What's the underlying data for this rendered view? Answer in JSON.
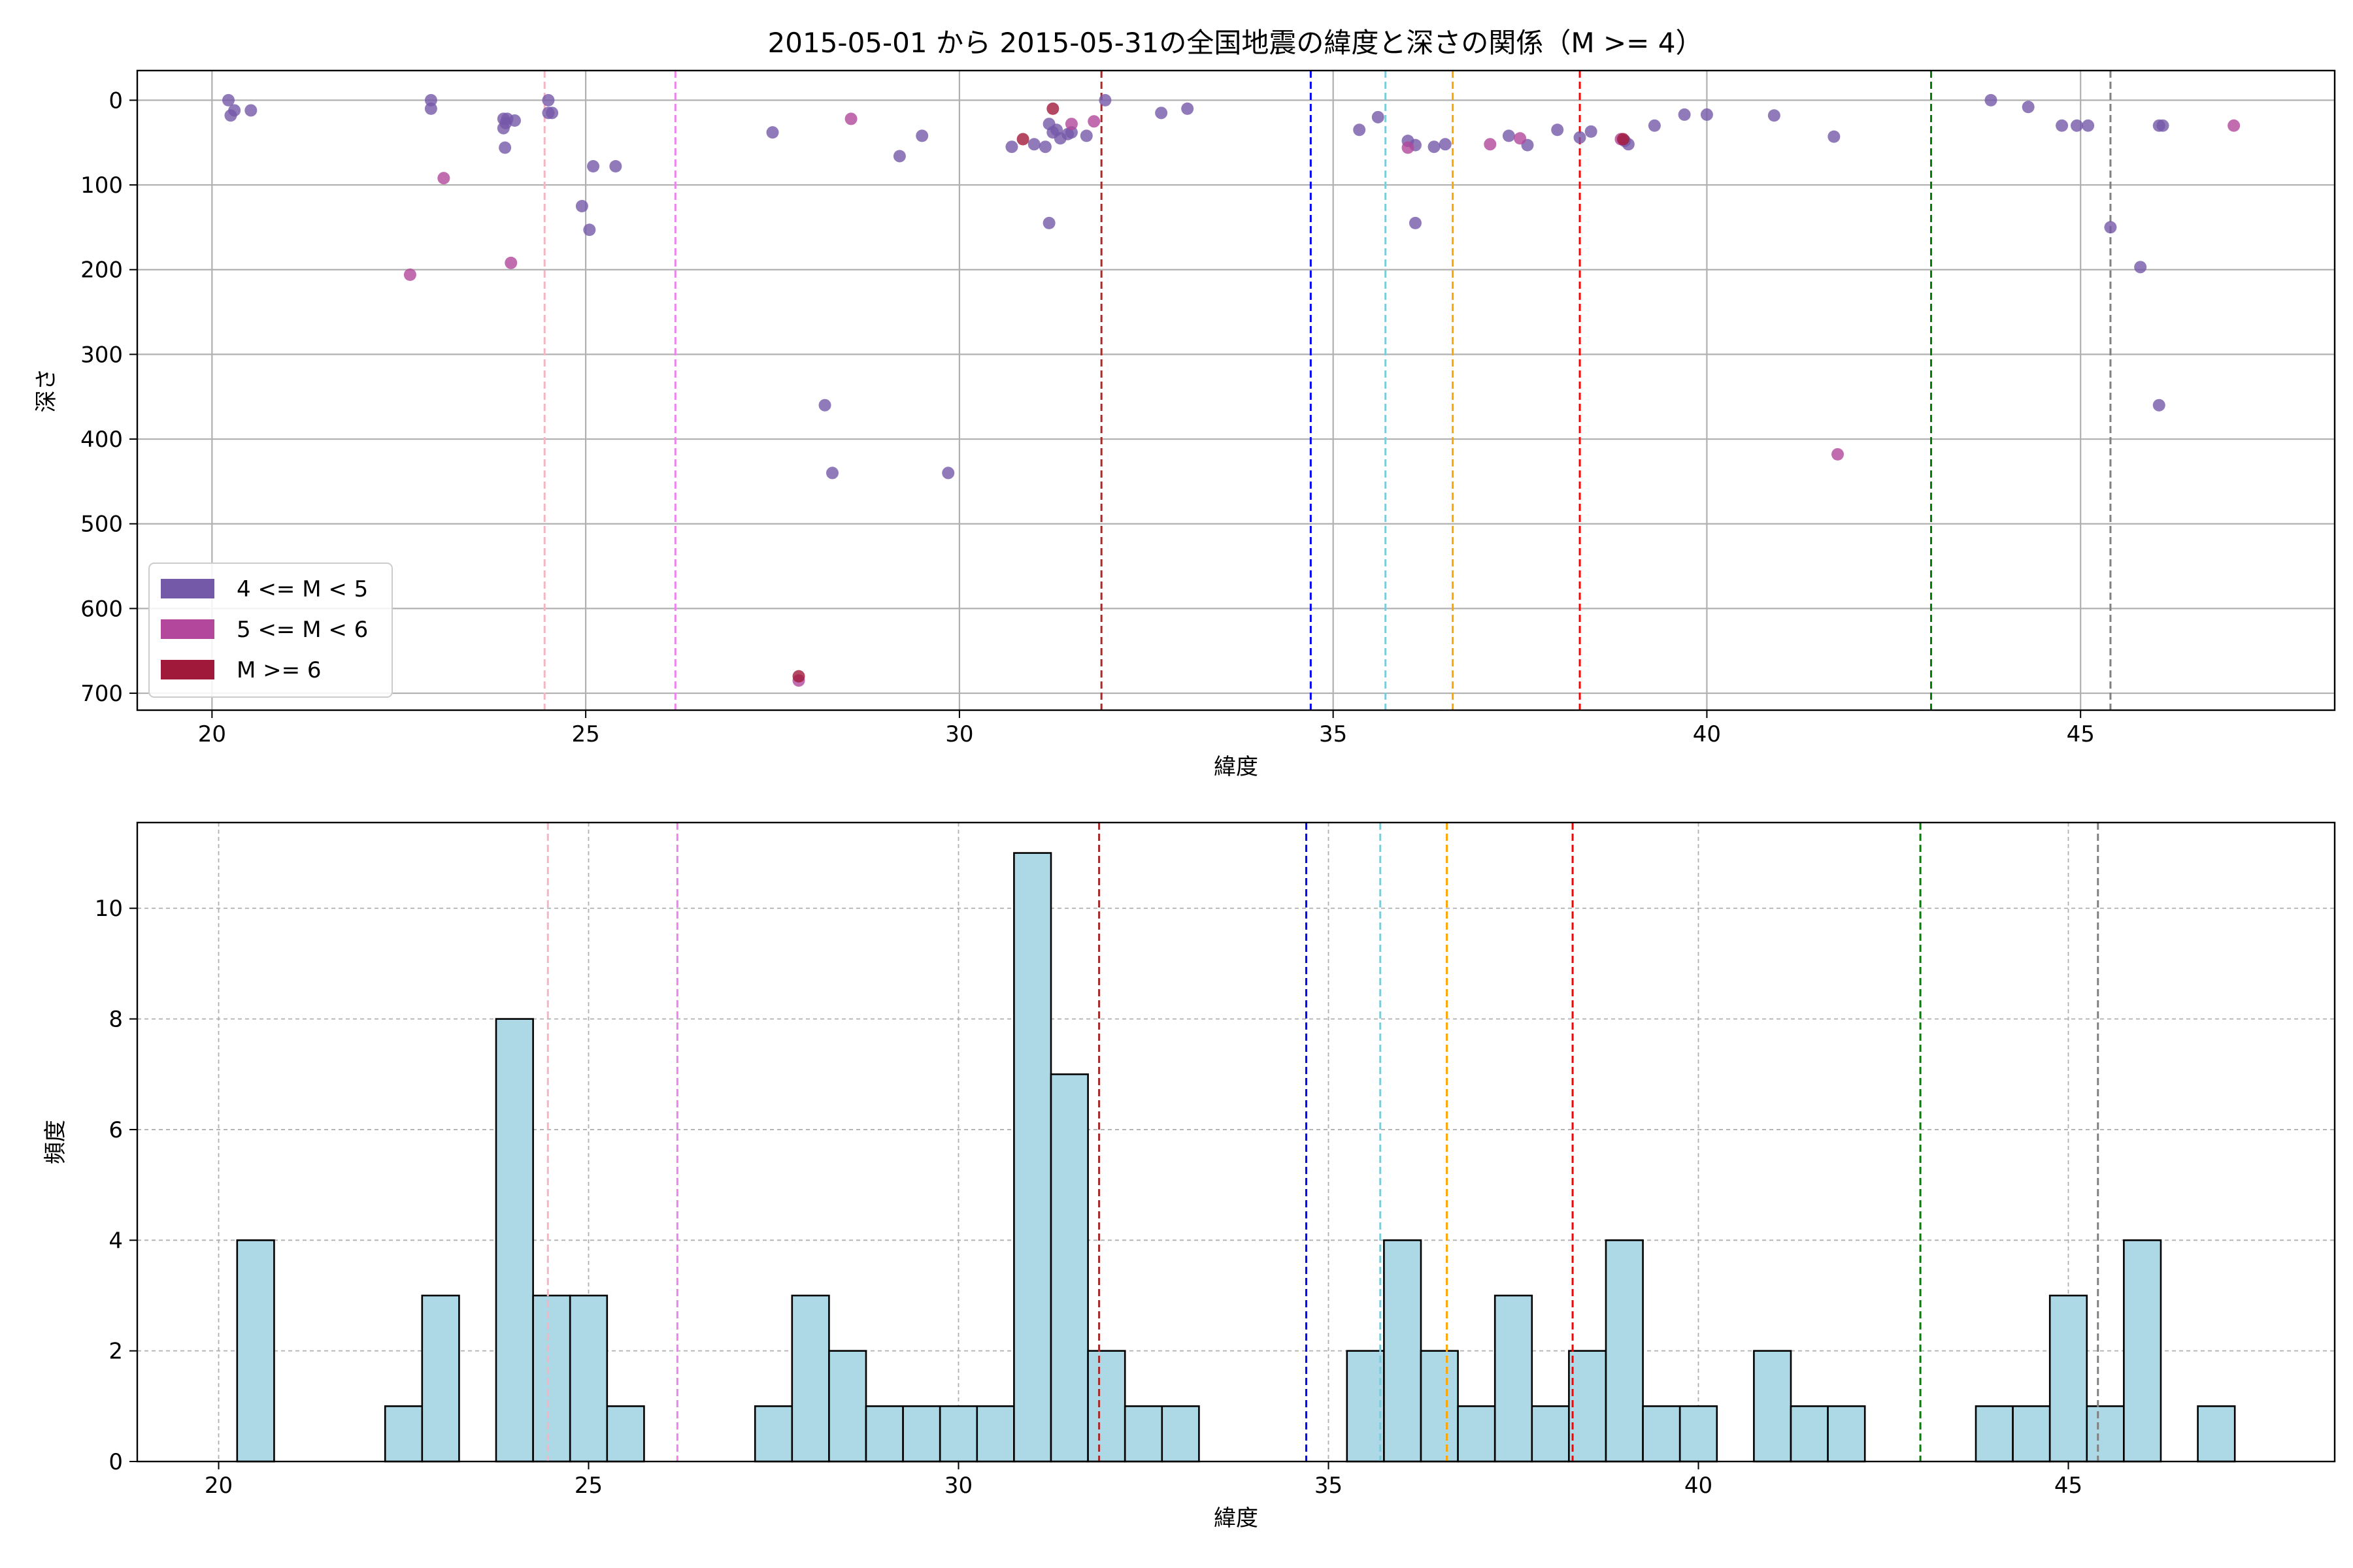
{
  "chart_data": [
    {
      "type": "scatter",
      "title": "2015-05-01 から 2015-05-31の全国地震の緯度と深さの関係（M >= 4）",
      "xlabel": "緯度",
      "ylabel": "深さ",
      "xlim": [
        19,
        48.4
      ],
      "ylim": [
        720,
        -35
      ],
      "y_inverted": true,
      "grid": true,
      "x_ticks": [
        20,
        25,
        30,
        35,
        40,
        45
      ],
      "y_ticks": [
        0,
        100,
        200,
        300,
        400,
        500,
        600,
        700
      ],
      "legend": {
        "placement": "lower-left",
        "entries": [
          {
            "label": "4 <= M < 5",
            "color": "#7559a9"
          },
          {
            "label": "5 <= M < 6",
            "color": "#b2479b"
          },
          {
            "label": "M >= 6",
            "color": "#a1193a"
          }
        ]
      },
      "series": [
        {
          "class": "4 <= M < 5",
          "color": "#7559a9",
          "points": [
            [
              20.22,
              0
            ],
            [
              20.25,
              18
            ],
            [
              20.3,
              12
            ],
            [
              20.52,
              12
            ],
            [
              22.93,
              0
            ],
            [
              22.93,
              10
            ],
            [
              23.9,
              22
            ],
            [
              23.93,
              27
            ],
            [
              23.9,
              33
            ],
            [
              23.95,
              22
            ],
            [
              24.05,
              24
            ],
            [
              23.92,
              56
            ],
            [
              24.5,
              0
            ],
            [
              24.55,
              15
            ],
            [
              24.5,
              15
            ],
            [
              24.95,
              125
            ],
            [
              25.05,
              153
            ],
            [
              25.1,
              78
            ],
            [
              25.4,
              78
            ],
            [
              27.5,
              38
            ],
            [
              28.2,
              360
            ],
            [
              28.3,
              440
            ],
            [
              29.2,
              66
            ],
            [
              29.5,
              42
            ],
            [
              29.85,
              440
            ],
            [
              30.7,
              55
            ],
            [
              31.0,
              52
            ],
            [
              31.15,
              55
            ],
            [
              31.2,
              28
            ],
            [
              31.25,
              38
            ],
            [
              31.3,
              35
            ],
            [
              31.2,
              145
            ],
            [
              31.35,
              45
            ],
            [
              31.45,
              40
            ],
            [
              31.5,
              38
            ],
            [
              31.7,
              42
            ],
            [
              31.95,
              0
            ],
            [
              32.7,
              15
            ],
            [
              33.05,
              10
            ],
            [
              35.35,
              35
            ],
            [
              35.6,
              20
            ],
            [
              36.0,
              48
            ],
            [
              36.1,
              145
            ],
            [
              36.1,
              53
            ],
            [
              36.35,
              55
            ],
            [
              36.5,
              52
            ],
            [
              37.35,
              42
            ],
            [
              37.6,
              53
            ],
            [
              38.0,
              35
            ],
            [
              38.3,
              44
            ],
            [
              38.45,
              37
            ],
            [
              38.9,
              48
            ],
            [
              38.95,
              52
            ],
            [
              39.3,
              30
            ],
            [
              39.7,
              17
            ],
            [
              40.0,
              17
            ],
            [
              40.9,
              18
            ],
            [
              41.7,
              43
            ],
            [
              43.8,
              0
            ],
            [
              44.3,
              8
            ],
            [
              44.75,
              30
            ],
            [
              44.95,
              30
            ],
            [
              45.1,
              30
            ],
            [
              45.4,
              150
            ],
            [
              45.8,
              197
            ],
            [
              46.05,
              30
            ],
            [
              46.1,
              30
            ],
            [
              46.05,
              360
            ]
          ]
        },
        {
          "class": "5 <= M < 6",
          "color": "#b2479b",
          "points": [
            [
              22.65,
              206
            ],
            [
              23.1,
              92
            ],
            [
              24.0,
              192
            ],
            [
              27.85,
              685
            ],
            [
              28.55,
              22
            ],
            [
              31.5,
              28
            ],
            [
              31.8,
              25
            ],
            [
              36.0,
              56
            ],
            [
              37.1,
              52
            ],
            [
              37.5,
              45
            ],
            [
              38.85,
              46
            ],
            [
              41.75,
              418
            ],
            [
              47.05,
              30
            ]
          ]
        },
        {
          "class": "M >= 6",
          "color": "#a1193a",
          "points": [
            [
              27.85,
              680
            ],
            [
              30.85,
              46
            ],
            [
              31.25,
              10
            ],
            [
              38.88,
              46
            ]
          ]
        }
      ],
      "vertical_lines": [
        {
          "x": 24.45,
          "color": "#f4b6c2"
        },
        {
          "x": 26.2,
          "color": "#ee82ee"
        },
        {
          "x": 31.9,
          "color": "#a52a2a"
        },
        {
          "x": 34.7,
          "color": "#0000ff"
        },
        {
          "x": 35.7,
          "color": "#7ecbdb"
        },
        {
          "x": 36.6,
          "color": "#ffa500"
        },
        {
          "x": 38.3,
          "color": "#ff0000"
        },
        {
          "x": 43.0,
          "color": "#008000"
        },
        {
          "x": 45.4,
          "color": "#808080"
        }
      ]
    },
    {
      "type": "bar",
      "title": "",
      "xlabel": "緯度",
      "ylabel": "頻度",
      "xlim": [
        18.9,
        48.6
      ],
      "ylim": [
        0,
        11.55
      ],
      "grid": true,
      "bar_color": "#add8e6",
      "bin_width": 0.5,
      "x_ticks": [
        20,
        25,
        30,
        35,
        40,
        45
      ],
      "y_ticks": [
        0,
        2,
        4,
        6,
        8,
        10
      ],
      "bins": [
        {
          "start": 20.25,
          "count": 4
        },
        {
          "start": 22.25,
          "count": 1
        },
        {
          "start": 22.75,
          "count": 3
        },
        {
          "start": 23.75,
          "count": 8
        },
        {
          "start": 24.25,
          "count": 3
        },
        {
          "start": 24.75,
          "count": 3
        },
        {
          "start": 25.25,
          "count": 1
        },
        {
          "start": 27.25,
          "count": 1
        },
        {
          "start": 27.75,
          "count": 3
        },
        {
          "start": 28.25,
          "count": 2
        },
        {
          "start": 28.75,
          "count": 1
        },
        {
          "start": 29.25,
          "count": 1
        },
        {
          "start": 29.75,
          "count": 1
        },
        {
          "start": 30.25,
          "count": 1
        },
        {
          "start": 30.75,
          "count": 11
        },
        {
          "start": 31.25,
          "count": 7
        },
        {
          "start": 31.75,
          "count": 2
        },
        {
          "start": 32.25,
          "count": 1
        },
        {
          "start": 32.75,
          "count": 1
        },
        {
          "start": 35.25,
          "count": 2
        },
        {
          "start": 35.75,
          "count": 4
        },
        {
          "start": 36.25,
          "count": 2
        },
        {
          "start": 36.75,
          "count": 1
        },
        {
          "start": 37.25,
          "count": 3
        },
        {
          "start": 37.75,
          "count": 1
        },
        {
          "start": 38.25,
          "count": 2
        },
        {
          "start": 38.75,
          "count": 4
        },
        {
          "start": 39.25,
          "count": 1
        },
        {
          "start": 39.75,
          "count": 1
        },
        {
          "start": 40.75,
          "count": 2
        },
        {
          "start": 41.25,
          "count": 1
        },
        {
          "start": 41.75,
          "count": 1
        },
        {
          "start": 43.75,
          "count": 1
        },
        {
          "start": 44.25,
          "count": 1
        },
        {
          "start": 44.75,
          "count": 3
        },
        {
          "start": 45.25,
          "count": 1
        },
        {
          "start": 45.75,
          "count": 4
        },
        {
          "start": 46.75,
          "count": 1
        }
      ],
      "vertical_lines": [
        {
          "x": 24.45,
          "color": "#f4b6c2"
        },
        {
          "x": 26.2,
          "color": "#ee82ee"
        },
        {
          "x": 31.9,
          "color": "#a52a2a"
        },
        {
          "x": 34.7,
          "color": "#0000ff"
        },
        {
          "x": 35.7,
          "color": "#7ecbdb"
        },
        {
          "x": 36.6,
          "color": "#ffa500"
        },
        {
          "x": 38.3,
          "color": "#ff0000"
        },
        {
          "x": 43.0,
          "color": "#008000"
        },
        {
          "x": 45.4,
          "color": "#808080"
        }
      ]
    }
  ]
}
